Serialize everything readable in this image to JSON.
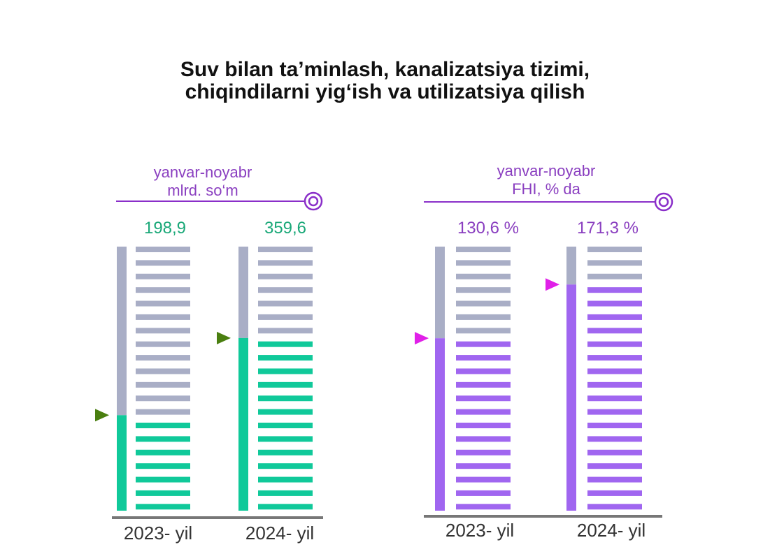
{
  "title": {
    "line1": "Suv bilan ta’minlash, kanalizatsiya tizimi,",
    "line2": "chiqindilarni yig‘ish va utilizatsiya qilish"
  },
  "colors": {
    "green": "#10c99a",
    "purple": "#a066f0",
    "empty": "#a9aec6",
    "header_line": "#8a2fc9",
    "green_arrow": "#4a7f10",
    "magenta_arrow": "#e020e8",
    "baseline": "#777777",
    "green_text": "#1aa878",
    "purple_text": "#8a3fc0"
  },
  "chart_data": [
    {
      "type": "bar",
      "subtitle_line1": "yanvar-noyabr",
      "subtitle_line2": "mlrd. so‘m",
      "categories": [
        "2023- yil",
        "2024- yil"
      ],
      "values": [
        198.9,
        359.6
      ],
      "value_labels": [
        "198,9",
        "359,6"
      ],
      "ylim": [
        0,
        550
      ]
    },
    {
      "type": "bar",
      "subtitle_line1": "yanvar-noyabr",
      "subtitle_line2": "FHI, % da",
      "categories": [
        "2023- yil",
        "2024- yil"
      ],
      "values": [
        130.6,
        171.3
      ],
      "value_labels": [
        "130,6 %",
        "171,3 %"
      ],
      "ylim": [
        0,
        200
      ]
    }
  ]
}
